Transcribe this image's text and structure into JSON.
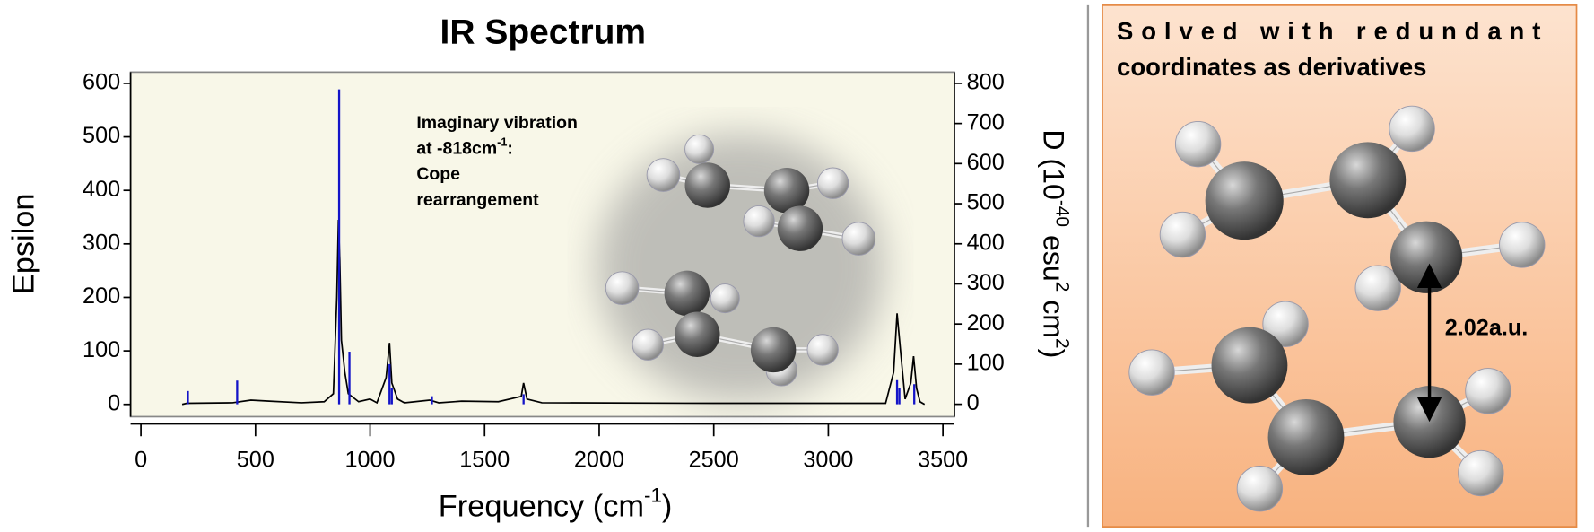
{
  "chart_data": {
    "type": "line",
    "title": "IR Spectrum",
    "xlabel": [
      "Frequency (cm",
      "-1",
      ")"
    ],
    "ylabel": "Epsilon",
    "y2label": [
      "D (10",
      "-40",
      " esu",
      "2",
      " cm",
      "2",
      ")"
    ],
    "annotation": [
      "Imaginary vibration",
      [
        "at -818cm",
        "-1",
        ":"
      ],
      "Cope",
      "rearrangement"
    ],
    "xlim": [
      -45,
      3550
    ],
    "ylim": [
      -23,
      621
    ],
    "y2lim": [
      -31,
      828
    ],
    "xticks": [
      0,
      500,
      1000,
      1500,
      2000,
      2500,
      3000,
      3500
    ],
    "yticks": [
      0,
      100,
      200,
      300,
      400,
      500,
      600
    ],
    "y2ticks": [
      0,
      100,
      200,
      300,
      400,
      500,
      600,
      700,
      800
    ],
    "series": [
      {
        "color": "#000000",
        "x": [
          180,
          200,
          400,
          480,
          560,
          700,
          800,
          840,
          855,
          862,
          868,
          875,
          890,
          905,
          950,
          1000,
          1030,
          1070,
          1085,
          1095,
          1120,
          1150,
          1260,
          1300,
          1400,
          1560,
          1660,
          1670,
          1685,
          1750,
          2500,
          3250,
          3285,
          3300,
          3315,
          3335,
          3360,
          3372,
          3385,
          3400,
          3420
        ],
        "values": [
          0,
          2,
          3,
          8,
          6,
          3,
          5,
          20,
          200,
          345,
          270,
          120,
          60,
          20,
          5,
          10,
          3,
          50,
          115,
          40,
          10,
          3,
          8,
          3,
          6,
          5,
          15,
          40,
          10,
          3,
          2,
          2,
          60,
          170,
          100,
          10,
          40,
          90,
          30,
          5,
          0
        ]
      },
      {
        "color": "#1414c8",
        "axis": "y2",
        "x": [
          205,
          420,
          865,
          910,
          1085,
          1095,
          1270,
          1670,
          3300,
          3310,
          3375
        ],
        "values": [
          33,
          59,
          785,
          131,
          100,
          40,
          20,
          25,
          60,
          40,
          50
        ]
      }
    ]
  },
  "panel": {
    "text": [
      "Solved with redundant",
      "coordinates as derivatives"
    ],
    "distance": "2.02a.u."
  }
}
